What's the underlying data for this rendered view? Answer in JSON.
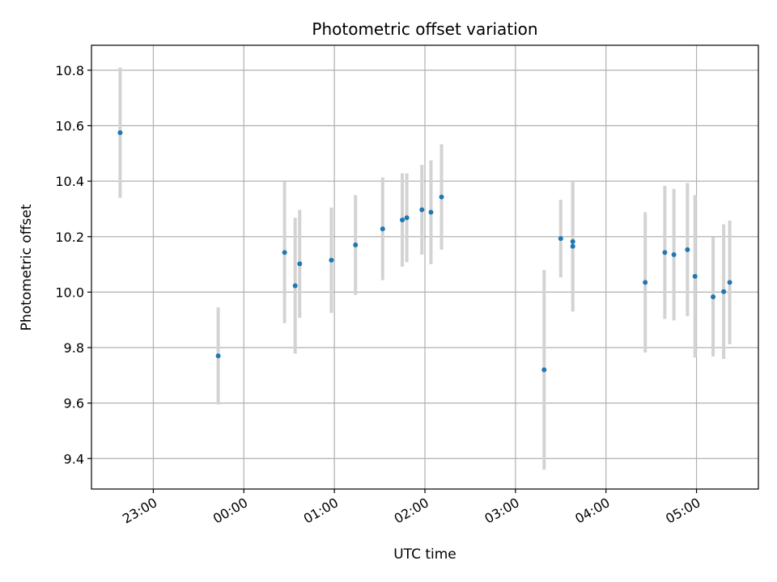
{
  "chart_data": {
    "type": "scatter",
    "title": "Photometric offset variation",
    "xlabel": "UTC time",
    "ylabel": "Photometric offset",
    "x_axis_type": "time",
    "x_ticks": [
      "23:00",
      "00:00",
      "01:00",
      "02:00",
      "03:00",
      "04:00",
      "05:00"
    ],
    "y_ticks": [
      "9.4",
      "9.6",
      "9.8",
      "10.0",
      "10.2",
      "10.4",
      "10.6",
      "10.8"
    ],
    "xlim": [
      "22:19",
      "05:41"
    ],
    "ylim": [
      9.29,
      10.89
    ],
    "grid": true,
    "marker_color": "#1f77b4",
    "errorbar_color": "#d3d3d3",
    "points": [
      {
        "x": "22:38",
        "y": 10.575,
        "err": 0.235
      },
      {
        "x": "23:43",
        "y": 9.77,
        "err": 0.175
      },
      {
        "x": "00:27",
        "y": 10.143,
        "err": 0.255
      },
      {
        "x": "00:34",
        "y": 10.023,
        "err": 0.245
      },
      {
        "x": "00:37",
        "y": 10.102,
        "err": 0.195
      },
      {
        "x": "00:58",
        "y": 10.115,
        "err": 0.19
      },
      {
        "x": "01:14",
        "y": 10.17,
        "err": 0.18
      },
      {
        "x": "01:32",
        "y": 10.228,
        "err": 0.185
      },
      {
        "x": "01:45",
        "y": 10.26,
        "err": 0.168
      },
      {
        "x": "01:48",
        "y": 10.268,
        "err": 0.16
      },
      {
        "x": "01:58",
        "y": 10.297,
        "err": 0.162
      },
      {
        "x": "02:04",
        "y": 10.288,
        "err": 0.187
      },
      {
        "x": "02:11",
        "y": 10.343,
        "err": 0.19
      },
      {
        "x": "03:19",
        "y": 9.72,
        "err": 0.36
      },
      {
        "x": "03:30",
        "y": 10.193,
        "err": 0.14
      },
      {
        "x": "03:38",
        "y": 10.182,
        "err": 0.215
      },
      {
        "x": "03:38",
        "y": 10.165,
        "err": 0.235
      },
      {
        "x": "04:26",
        "y": 10.035,
        "err": 0.253
      },
      {
        "x": "04:39",
        "y": 10.143,
        "err": 0.24
      },
      {
        "x": "04:45",
        "y": 10.135,
        "err": 0.237
      },
      {
        "x": "04:54",
        "y": 10.153,
        "err": 0.24
      },
      {
        "x": "04:59",
        "y": 10.057,
        "err": 0.293
      },
      {
        "x": "05:11",
        "y": 9.983,
        "err": 0.215
      },
      {
        "x": "05:18",
        "y": 10.002,
        "err": 0.243
      },
      {
        "x": "05:22",
        "y": 10.035,
        "err": 0.223
      }
    ]
  }
}
